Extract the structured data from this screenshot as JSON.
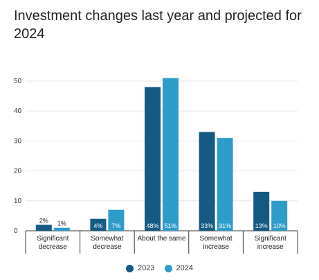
{
  "chart_data": {
    "type": "bar",
    "title": "Investment changes last year and projected for 2024",
    "categories": [
      [
        "Significant",
        "decrease"
      ],
      [
        "Somewhat",
        "decrease"
      ],
      [
        "About the same"
      ],
      [
        "Somewhat",
        "increase"
      ],
      [
        "Significant",
        "increase"
      ]
    ],
    "series": [
      {
        "name": "2023",
        "color": "#155a82",
        "values": [
          2,
          4,
          48,
          33,
          13
        ],
        "labels": [
          "2%",
          "4%",
          "48%",
          "33%",
          "13%"
        ]
      },
      {
        "name": "2024",
        "color": "#2e9cc9",
        "values": [
          1,
          7,
          51,
          31,
          10
        ],
        "labels": [
          "1%",
          "7%",
          "51%",
          "31%",
          "10%"
        ]
      }
    ],
    "yticks": [
      0,
      10,
      20,
      30,
      40,
      50
    ],
    "ylim": [
      0,
      53
    ],
    "grid": true,
    "legend_position": "bottom"
  }
}
